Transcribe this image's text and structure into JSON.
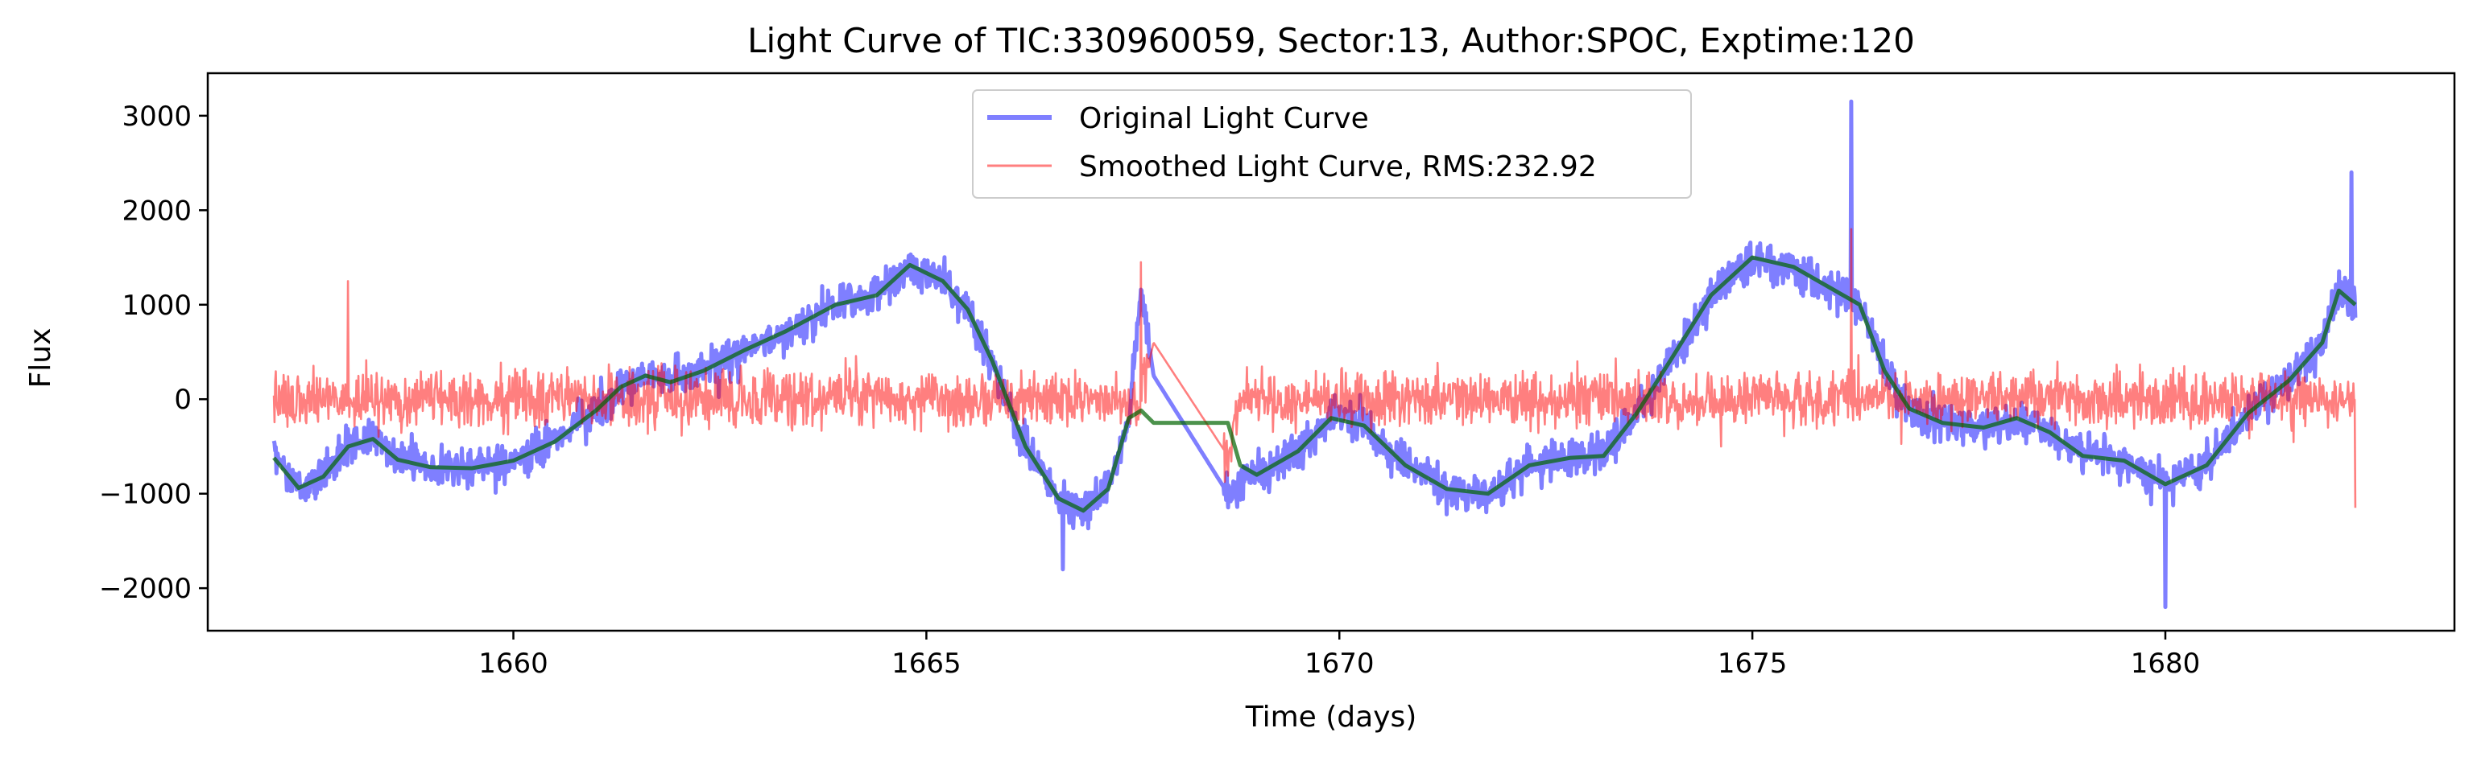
{
  "chart_data": {
    "type": "line",
    "title": "Light Curve of TIC:330960059, Sector:13, Author:SPOC, Exptime:120",
    "xlabel": "Time (days)",
    "ylabel": "Flux",
    "xlim": [
      1656.3,
      1683.5
    ],
    "ylim": [
      -2450,
      3450
    ],
    "x_ticks": [
      1660,
      1665,
      1670,
      1675,
      1680
    ],
    "x_tick_labels": [
      "1660",
      "1665",
      "1670",
      "1675",
      "1680"
    ],
    "y_ticks": [
      -2000,
      -1000,
      0,
      1000,
      2000,
      3000
    ],
    "y_tick_labels": [
      "−2000",
      "−1000",
      "0",
      "1000",
      "2000",
      "3000"
    ],
    "grid": false,
    "legend_position": "top-center",
    "data_gap": [
      1667.7,
      1668.6
    ],
    "series": [
      {
        "name": "Original Light Curve",
        "color": "#0000ff",
        "alpha": 0.5,
        "noise": 160,
        "trend": [
          [
            1657.1,
            -620
          ],
          [
            1657.4,
            -940
          ],
          [
            1657.7,
            -820
          ],
          [
            1658.0,
            -500
          ],
          [
            1658.3,
            -420
          ],
          [
            1658.6,
            -640
          ],
          [
            1659.0,
            -720
          ],
          [
            1659.5,
            -730
          ],
          [
            1660.0,
            -650
          ],
          [
            1660.5,
            -450
          ],
          [
            1661.0,
            -120
          ],
          [
            1661.3,
            130
          ],
          [
            1661.6,
            250
          ],
          [
            1661.9,
            180
          ],
          [
            1662.3,
            300
          ],
          [
            1662.8,
            520
          ],
          [
            1663.3,
            720
          ],
          [
            1663.9,
            1000
          ],
          [
            1664.4,
            1100
          ],
          [
            1664.8,
            1420
          ],
          [
            1665.2,
            1250
          ],
          [
            1665.5,
            950
          ],
          [
            1665.8,
            400
          ],
          [
            1666.2,
            -500
          ],
          [
            1666.6,
            -1050
          ],
          [
            1666.9,
            -1180
          ],
          [
            1667.2,
            -950
          ],
          [
            1667.45,
            -200
          ],
          [
            1667.6,
            1200
          ],
          [
            1667.75,
            250
          ],
          [
            1668.65,
            -1000
          ],
          [
            1668.8,
            -880
          ],
          [
            1669.0,
            -800
          ],
          [
            1669.5,
            -550
          ],
          [
            1669.9,
            -200
          ],
          [
            1670.3,
            -280
          ],
          [
            1670.8,
            -700
          ],
          [
            1671.3,
            -950
          ],
          [
            1671.8,
            -1000
          ],
          [
            1672.3,
            -700
          ],
          [
            1672.8,
            -620
          ],
          [
            1673.2,
            -600
          ],
          [
            1673.6,
            -150
          ],
          [
            1674.0,
            400
          ],
          [
            1674.5,
            1100
          ],
          [
            1675.0,
            1500
          ],
          [
            1675.5,
            1400
          ],
          [
            1676.0,
            1150
          ],
          [
            1676.3,
            1000
          ],
          [
            1676.6,
            300
          ],
          [
            1676.9,
            -100
          ],
          [
            1677.3,
            -250
          ],
          [
            1677.8,
            -300
          ],
          [
            1678.2,
            -200
          ],
          [
            1678.6,
            -350
          ],
          [
            1679.0,
            -600
          ],
          [
            1679.5,
            -650
          ],
          [
            1680.0,
            -900
          ],
          [
            1680.5,
            -700
          ],
          [
            1681.0,
            -150
          ],
          [
            1681.5,
            200
          ],
          [
            1681.9,
            600
          ],
          [
            1682.1,
            1150
          ],
          [
            1682.3,
            1000
          ]
        ],
        "spikes": [
          [
            1676.2,
            3150
          ],
          [
            1682.25,
            2400
          ],
          [
            1680.0,
            -2200
          ],
          [
            1666.65,
            -1800
          ]
        ]
      },
      {
        "name": "Smoothed Light Curve, RMS:232.92",
        "color": "#ff0000",
        "alpha": 0.5,
        "noise": 232.92,
        "trend": [
          [
            1657.1,
            0
          ],
          [
            1667.6,
            0
          ],
          [
            1667.75,
            600
          ],
          [
            1668.65,
            -600
          ],
          [
            1668.8,
            0
          ],
          [
            1682.3,
            0
          ]
        ],
        "spikes": [
          [
            1667.6,
            1450
          ],
          [
            1676.2,
            1800
          ],
          [
            1682.3,
            -1150
          ],
          [
            1658.0,
            1250
          ]
        ]
      },
      {
        "color": "#006400",
        "alpha": 0.7,
        "trend": [
          [
            1657.1,
            -620
          ],
          [
            1657.4,
            -940
          ],
          [
            1657.7,
            -820
          ],
          [
            1658.0,
            -500
          ],
          [
            1658.3,
            -420
          ],
          [
            1658.6,
            -640
          ],
          [
            1659.0,
            -720
          ],
          [
            1659.5,
            -730
          ],
          [
            1660.0,
            -650
          ],
          [
            1660.5,
            -450
          ],
          [
            1661.0,
            -120
          ],
          [
            1661.3,
            130
          ],
          [
            1661.6,
            250
          ],
          [
            1661.9,
            180
          ],
          [
            1662.3,
            300
          ],
          [
            1662.8,
            520
          ],
          [
            1663.3,
            720
          ],
          [
            1663.9,
            1000
          ],
          [
            1664.4,
            1100
          ],
          [
            1664.8,
            1420
          ],
          [
            1665.2,
            1250
          ],
          [
            1665.5,
            950
          ],
          [
            1665.8,
            400
          ],
          [
            1666.2,
            -500
          ],
          [
            1666.6,
            -1050
          ],
          [
            1666.9,
            -1180
          ],
          [
            1667.2,
            -950
          ],
          [
            1667.45,
            -200
          ],
          [
            1667.6,
            -120
          ],
          [
            1667.75,
            -250
          ],
          [
            1668.65,
            -250
          ],
          [
            1668.8,
            -700
          ],
          [
            1669.0,
            -800
          ],
          [
            1669.5,
            -550
          ],
          [
            1669.9,
            -200
          ],
          [
            1670.3,
            -280
          ],
          [
            1670.8,
            -700
          ],
          [
            1671.3,
            -950
          ],
          [
            1671.8,
            -1000
          ],
          [
            1672.3,
            -700
          ],
          [
            1672.8,
            -620
          ],
          [
            1673.2,
            -600
          ],
          [
            1673.6,
            -150
          ],
          [
            1674.0,
            400
          ],
          [
            1674.5,
            1100
          ],
          [
            1675.0,
            1500
          ],
          [
            1675.5,
            1400
          ],
          [
            1676.0,
            1150
          ],
          [
            1676.3,
            1000
          ],
          [
            1676.6,
            300
          ],
          [
            1676.9,
            -100
          ],
          [
            1677.3,
            -250
          ],
          [
            1677.8,
            -300
          ],
          [
            1678.2,
            -200
          ],
          [
            1678.6,
            -350
          ],
          [
            1679.0,
            -600
          ],
          [
            1679.5,
            -650
          ],
          [
            1680.0,
            -900
          ],
          [
            1680.5,
            -700
          ],
          [
            1681.0,
            -150
          ],
          [
            1681.5,
            200
          ],
          [
            1681.9,
            600
          ],
          [
            1682.1,
            1150
          ],
          [
            1682.3,
            1000
          ]
        ]
      }
    ]
  }
}
